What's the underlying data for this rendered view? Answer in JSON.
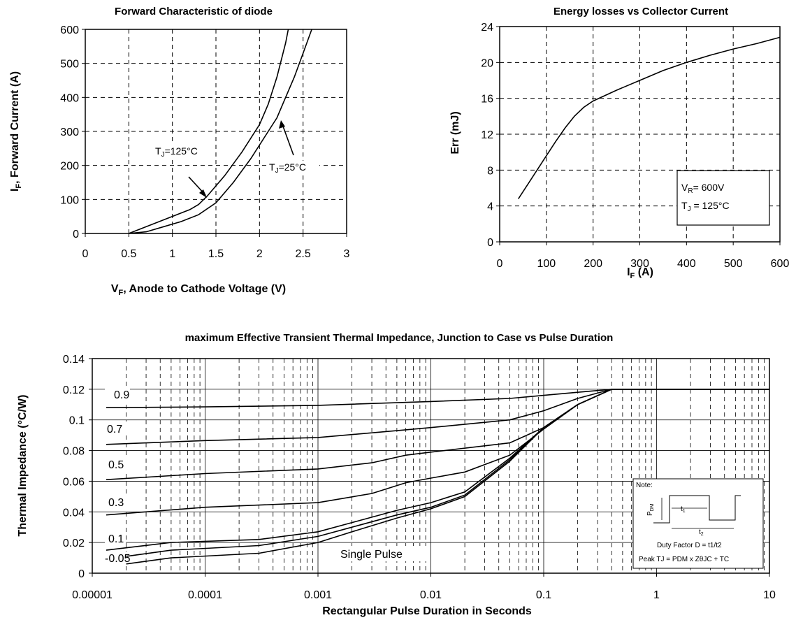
{
  "chart_data": [
    {
      "type": "line",
      "title": "Forward Characteristic of diode",
      "xlabel_main": "V",
      "xlabel_sub": "F",
      "xlabel_rest": ", Anode to Cathode Voltage (V)",
      "ylabel_main": "I",
      "ylabel_sub": "F",
      "ylabel_rest": ", Forward Current (A)",
      "xlim": [
        0,
        3
      ],
      "ylim": [
        0,
        600
      ],
      "xticks": [
        "0",
        "0.5",
        "1",
        "1.5",
        "2",
        "2.5",
        "3"
      ],
      "yticks": [
        "0",
        "100",
        "200",
        "300",
        "400",
        "500",
        "600"
      ],
      "grid": true,
      "series": [
        {
          "name": "TJ=125°C",
          "x": [
            0.5,
            0.7,
            0.9,
            1.1,
            1.2,
            1.3,
            1.4,
            1.6,
            1.8,
            2.0,
            2.1,
            2.2,
            2.3,
            2.33
          ],
          "y": [
            0,
            20,
            40,
            60,
            70,
            85,
            110,
            170,
            240,
            320,
            380,
            460,
            560,
            600
          ]
        },
        {
          "name": "TJ=25°C",
          "x": [
            0.5,
            0.7,
            0.9,
            1.1,
            1.3,
            1.5,
            1.7,
            1.9,
            2.1,
            2.2,
            2.3,
            2.4,
            2.5,
            2.6
          ],
          "y": [
            0,
            5,
            20,
            35,
            55,
            90,
            150,
            220,
            300,
            340,
            400,
            460,
            530,
            600
          ]
        }
      ],
      "annotations": {
        "t125": {
          "main": "T",
          "sub": "J",
          "rest": "=125°C"
        },
        "t25": {
          "main": "T",
          "sub": "J",
          "rest": "=25°C"
        }
      }
    },
    {
      "type": "line",
      "title": "Energy losses vs Collector Current",
      "xlabel_main": "I",
      "xlabel_sub": "F",
      "xlabel_rest": " (A)",
      "ylabel": "Err (mJ)",
      "xlim": [
        0,
        600
      ],
      "ylim": [
        0,
        24
      ],
      "xticks": [
        "0",
        "100",
        "200",
        "300",
        "400",
        "500",
        "600"
      ],
      "yticks": [
        "0",
        "4",
        "8",
        "12",
        "16",
        "20",
        "24"
      ],
      "grid": true,
      "series": [
        {
          "x": [
            40,
            60,
            80,
            100,
            120,
            140,
            160,
            180,
            200,
            250,
            300,
            350,
            400,
            450,
            500,
            550,
            600
          ],
          "y": [
            4.8,
            6.4,
            8.0,
            9.6,
            11.2,
            12.7,
            14.0,
            15.0,
            15.7,
            16.9,
            18.0,
            19.1,
            20.0,
            20.8,
            21.5,
            22.1,
            22.8
          ]
        }
      ],
      "legend_box": {
        "vr": {
          "main": "V",
          "sub": "R",
          "rest": "= 600V"
        },
        "tj": {
          "main": "T",
          "sub": "J",
          "rest": " = 125°C"
        }
      }
    },
    {
      "type": "line",
      "title": "maximum Effective Transient Thermal Impedance, Junction to Case vs Pulse Duration",
      "xlabel": "Rectangular Pulse Duration in Seconds",
      "ylabel": "Thermal Impedance (°C/W)",
      "xscale": "log",
      "xlim": [
        1e-05,
        10
      ],
      "ylim": [
        0,
        0.14
      ],
      "xticks": [
        "0.00001",
        "0.0001",
        "0.001",
        "0.01",
        "0.1",
        "1",
        "10"
      ],
      "yticks": [
        "0",
        "0.02",
        "0.04",
        "0.06",
        "0.08",
        "0.1",
        "0.12",
        "0.14"
      ],
      "grid": true,
      "series": [
        {
          "name": "0.9",
          "x": [
            1.33e-05,
            0.0001,
            0.001,
            0.01,
            0.05,
            0.1,
            0.2,
            0.4,
            10
          ],
          "y": [
            0.108,
            0.1085,
            0.1095,
            0.112,
            0.114,
            0.116,
            0.118,
            0.12,
            0.12
          ]
        },
        {
          "name": "0.7",
          "x": [
            1.33e-05,
            0.0001,
            0.001,
            0.005,
            0.01,
            0.05,
            0.1,
            0.2,
            0.4,
            10
          ],
          "y": [
            0.084,
            0.0865,
            0.0885,
            0.093,
            0.095,
            0.1,
            0.106,
            0.114,
            0.12,
            0.12
          ]
        },
        {
          "name": "0.5",
          "x": [
            1.33e-05,
            0.0001,
            0.001,
            0.003,
            0.006,
            0.01,
            0.05,
            0.1,
            0.2,
            0.4,
            10
          ],
          "y": [
            0.061,
            0.065,
            0.068,
            0.072,
            0.077,
            0.079,
            0.085,
            0.095,
            0.11,
            0.12,
            0.12
          ]
        },
        {
          "name": "0.3",
          "x": [
            1.33e-05,
            0.0001,
            0.001,
            0.003,
            0.006,
            0.01,
            0.02,
            0.05,
            0.1,
            0.2,
            0.4,
            10
          ],
          "y": [
            0.038,
            0.043,
            0.046,
            0.052,
            0.059,
            0.062,
            0.066,
            0.077,
            0.094,
            0.11,
            0.12,
            0.12
          ]
        },
        {
          "name": "0.1",
          "x": [
            1.33e-05,
            5e-05,
            0.0003,
            0.001,
            0.002,
            0.005,
            0.01,
            0.02,
            0.05,
            0.1,
            0.2,
            0.4,
            10
          ],
          "y": [
            0.015,
            0.02,
            0.022,
            0.027,
            0.033,
            0.041,
            0.046,
            0.053,
            0.075,
            0.095,
            0.11,
            0.12,
            0.12
          ]
        },
        {
          "name": "0.05",
          "x": [
            2e-05,
            5e-05,
            0.0003,
            0.001,
            0.002,
            0.005,
            0.01,
            0.02,
            0.05,
            0.1,
            0.2,
            0.4,
            10
          ],
          "y": [
            0.011,
            0.015,
            0.018,
            0.024,
            0.03,
            0.038,
            0.043,
            0.051,
            0.074,
            0.095,
            0.11,
            0.12,
            0.12
          ]
        },
        {
          "name": "Single Pulse",
          "x": [
            2e-05,
            5e-05,
            0.0003,
            0.001,
            0.002,
            0.005,
            0.01,
            0.02,
            0.05,
            0.1,
            0.2,
            0.4,
            10
          ],
          "y": [
            0.006,
            0.01,
            0.013,
            0.02,
            0.027,
            0.036,
            0.042,
            0.05,
            0.073,
            0.095,
            0.11,
            0.12,
            0.12
          ]
        }
      ],
      "curve_labels": [
        "0.9",
        "0.7",
        "0.5",
        "0.3",
        "0.1",
        "-0.05"
      ],
      "single_pulse_label": "Single Pulse",
      "note": {
        "title": "Note:",
        "pdm_main": "P",
        "pdm_sub": "DM",
        "t1_main": "t",
        "t1_sub": "1",
        "t2_main": "t",
        "t2_sub": "2",
        "duty": "Duty Factor  D = t1/t2",
        "peak": "Peak TJ = PDM x ZθJC + TC"
      }
    }
  ]
}
